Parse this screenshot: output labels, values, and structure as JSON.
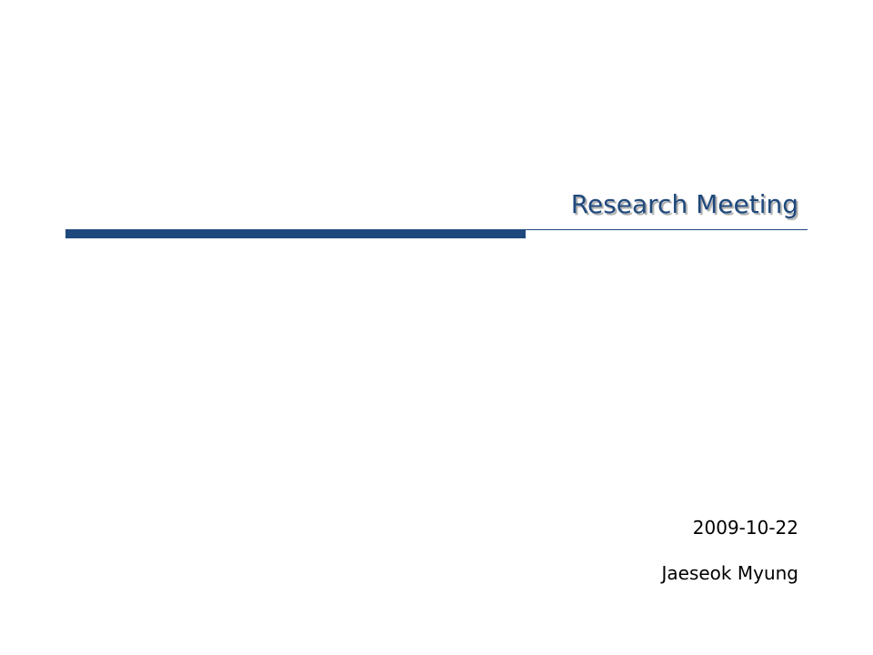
{
  "slide": {
    "title": "Research Meeting",
    "date": "2009-10-22",
    "author": "Jaeseok Myung"
  }
}
